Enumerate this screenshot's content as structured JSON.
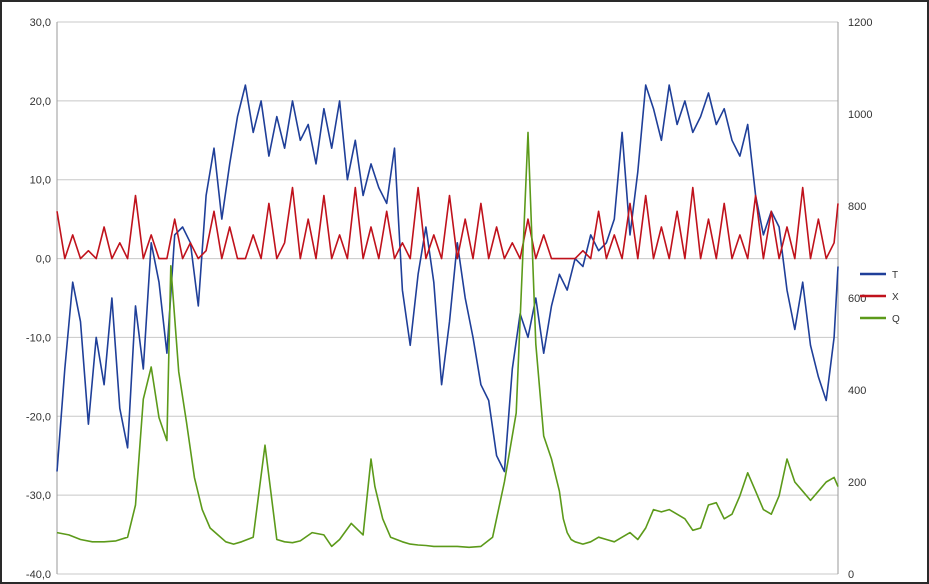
{
  "chart_data": {
    "type": "line",
    "title": "",
    "xlabel": "",
    "ylabel": "",
    "y_left": {
      "ylim": [
        -40,
        30
      ],
      "ticks": [
        30,
        20,
        10,
        0,
        -10,
        -20,
        -30,
        -40
      ],
      "tick_labels": [
        "30,0",
        "20,0",
        "10,0",
        "0,0",
        "-10,0",
        "-20,0",
        "-30,0",
        "-40,0"
      ]
    },
    "y_right": {
      "ylim": [
        0,
        1200
      ],
      "ticks": [
        1200,
        1000,
        800,
        600,
        400,
        200,
        0
      ],
      "tick_labels": [
        "1200",
        "1000",
        "800",
        "600",
        "400",
        "200",
        "0"
      ]
    },
    "grid": "horizontal",
    "legend_position": "right",
    "x_count": 200,
    "series": [
      {
        "name": "T",
        "axis": "left",
        "color": "#1f3f99",
        "x": [
          0,
          2,
          4,
          6,
          8,
          10,
          12,
          14,
          16,
          18,
          20,
          22,
          24,
          26,
          28,
          30,
          32,
          34,
          36,
          38,
          40,
          42,
          44,
          46,
          48,
          50,
          52,
          54,
          56,
          58,
          60,
          62,
          64,
          66,
          68,
          70,
          72,
          74,
          76,
          78,
          80,
          82,
          84,
          86,
          88,
          90,
          92,
          94,
          96,
          98,
          100,
          102,
          104,
          106,
          108,
          110,
          112,
          114,
          116,
          118,
          120,
          122,
          124,
          126,
          128,
          130,
          132,
          134,
          136,
          138,
          140,
          142,
          144,
          146,
          148,
          150,
          152,
          154,
          156,
          158,
          160,
          162,
          164,
          166,
          168,
          170,
          172,
          174,
          176,
          178,
          180,
          182,
          184,
          186,
          188,
          190,
          192,
          194,
          196,
          198,
          199
        ],
        "values": [
          -27,
          -14,
          -3,
          -8,
          -21,
          -10,
          -16,
          -5,
          -19,
          -24,
          -6,
          -14,
          2,
          -3,
          -12,
          3,
          4,
          2,
          -6,
          8,
          14,
          5,
          12,
          18,
          22,
          16,
          20,
          13,
          18,
          14,
          20,
          15,
          17,
          12,
          19,
          14,
          20,
          10,
          15,
          8,
          12,
          9,
          7,
          14,
          -4,
          -11,
          -2,
          4,
          -3,
          -16,
          -8,
          2,
          -5,
          -10,
          -16,
          -18,
          -25,
          -27,
          -14,
          -7,
          -10,
          -5,
          -12,
          -6,
          -2,
          -4,
          0,
          -1,
          3,
          1,
          2,
          5,
          16,
          3,
          11,
          22,
          19,
          15,
          22,
          17,
          20,
          16,
          18,
          21,
          17,
          19,
          15,
          13,
          17,
          8,
          3,
          6,
          4,
          -4,
          -9,
          -3,
          -11,
          -15,
          -18,
          -10,
          -1
        ]
      },
      {
        "name": "X",
        "axis": "left",
        "color": "#c0121c",
        "x": [
          0,
          2,
          4,
          6,
          8,
          10,
          12,
          14,
          16,
          18,
          20,
          22,
          24,
          26,
          28,
          30,
          32,
          34,
          36,
          38,
          40,
          42,
          44,
          46,
          48,
          50,
          52,
          54,
          56,
          58,
          60,
          62,
          64,
          66,
          68,
          70,
          72,
          74,
          76,
          78,
          80,
          82,
          84,
          86,
          88,
          90,
          92,
          94,
          96,
          98,
          100,
          102,
          104,
          106,
          108,
          110,
          112,
          114,
          116,
          118,
          120,
          122,
          124,
          126,
          128,
          130,
          132,
          134,
          136,
          138,
          140,
          142,
          144,
          146,
          148,
          150,
          152,
          154,
          156,
          158,
          160,
          162,
          164,
          166,
          168,
          170,
          172,
          174,
          176,
          178,
          180,
          182,
          184,
          186,
          188,
          190,
          192,
          194,
          196,
          198,
          199
        ],
        "values": [
          6,
          0,
          3,
          0,
          1,
          0,
          4,
          0,
          2,
          0,
          8,
          0,
          3,
          0,
          0,
          5,
          0,
          2,
          0,
          1,
          6,
          0,
          4,
          0,
          0,
          3,
          0,
          7,
          0,
          2,
          9,
          0,
          5,
          0,
          8,
          0,
          3,
          0,
          9,
          0,
          4,
          0,
          6,
          0,
          2,
          0,
          9,
          0,
          3,
          0,
          8,
          0,
          5,
          0,
          7,
          0,
          4,
          0,
          2,
          0,
          5,
          0,
          3,
          0,
          0,
          0,
          0,
          1,
          0,
          6,
          0,
          3,
          0,
          7,
          0,
          8,
          0,
          4,
          0,
          6,
          0,
          9,
          0,
          5,
          0,
          7,
          0,
          3,
          0,
          8,
          0,
          6,
          0,
          4,
          0,
          9,
          0,
          5,
          0,
          2,
          7
        ]
      },
      {
        "name": "Q",
        "axis": "right",
        "color": "#5c9a1a",
        "x": [
          0,
          3,
          6,
          9,
          12,
          15,
          18,
          20,
          22,
          24,
          26,
          28,
          29,
          31,
          33,
          35,
          37,
          39,
          41,
          43,
          45,
          47,
          50,
          53,
          56,
          58,
          60,
          62,
          65,
          68,
          70,
          72,
          75,
          78,
          80,
          81,
          83,
          85,
          88,
          90,
          92,
          94,
          96,
          98,
          100,
          102,
          105,
          108,
          111,
          114,
          117,
          120,
          122,
          124,
          126,
          128,
          129,
          130,
          131,
          132,
          134,
          136,
          138,
          140,
          142,
          144,
          146,
          148,
          150,
          152,
          154,
          156,
          158,
          160,
          162,
          164,
          166,
          168,
          170,
          172,
          174,
          176,
          178,
          180,
          182,
          184,
          186,
          188,
          190,
          192,
          194,
          196,
          198,
          199
        ],
        "values": [
          90,
          85,
          75,
          70,
          70,
          72,
          80,
          150,
          380,
          450,
          340,
          290,
          670,
          440,
          330,
          210,
          140,
          100,
          85,
          70,
          65,
          70,
          80,
          280,
          75,
          70,
          68,
          72,
          90,
          85,
          60,
          75,
          110,
          85,
          250,
          190,
          120,
          80,
          70,
          65,
          63,
          62,
          60,
          60,
          60,
          60,
          58,
          60,
          80,
          200,
          350,
          960,
          500,
          300,
          250,
          180,
          120,
          90,
          75,
          70,
          65,
          70,
          80,
          75,
          70,
          80,
          90,
          75,
          100,
          140,
          135,
          140,
          130,
          120,
          95,
          100,
          150,
          155,
          120,
          130,
          170,
          220,
          180,
          140,
          130,
          170,
          250,
          200,
          180,
          160,
          180,
          200,
          210,
          190
        ]
      }
    ]
  }
}
